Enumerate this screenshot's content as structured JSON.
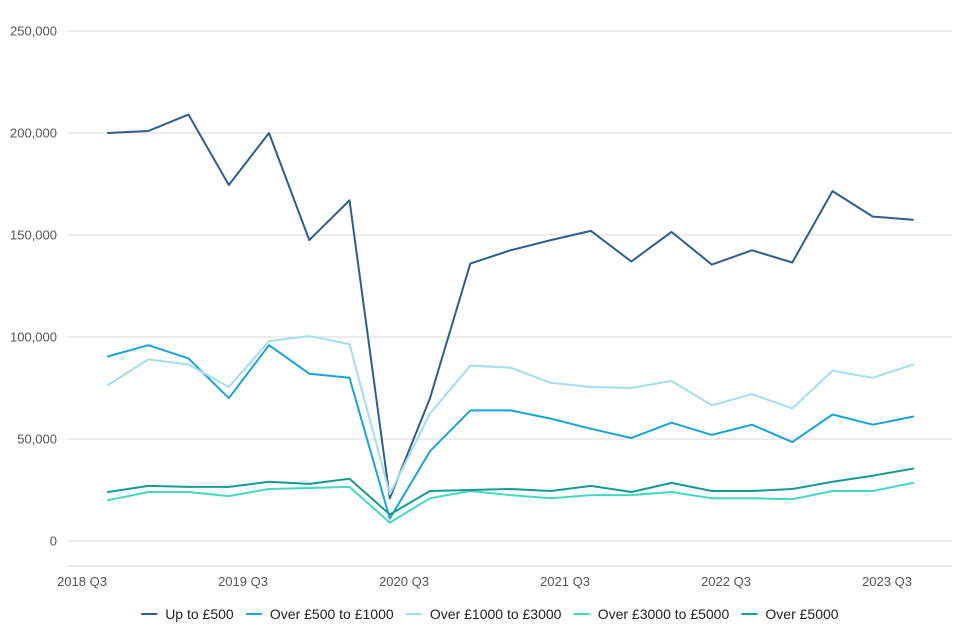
{
  "chart_data": {
    "type": "line",
    "title": "",
    "xlabel": "",
    "ylabel": "",
    "x": [
      "2018 Q3",
      "2018 Q4",
      "2019 Q1",
      "2019 Q2",
      "2019 Q3",
      "2019 Q4",
      "2020 Q1",
      "2020 Q2",
      "2020 Q3",
      "2020 Q4",
      "2021 Q1",
      "2021 Q2",
      "2021 Q3",
      "2021 Q4",
      "2022 Q1",
      "2022 Q2",
      "2022 Q3",
      "2022 Q4",
      "2023 Q1",
      "2023 Q2",
      "2023 Q3"
    ],
    "x_tick_labels": [
      "2018 Q3",
      "2019 Q3",
      "2020 Q3",
      "2021 Q3",
      "2022 Q3",
      "2023 Q3"
    ],
    "y_tick_labels": [
      "250,000",
      "200,000",
      "150,000",
      "100,000",
      "50,000",
      "0"
    ],
    "y_ticks": [
      250000,
      200000,
      150000,
      100000,
      50000,
      0
    ],
    "ylim": [
      0,
      250000
    ],
    "grid": true,
    "legend_position": "bottom",
    "series": [
      {
        "name": "Up to £500",
        "color": "#2e5e8e",
        "values": [
          200000,
          201000,
          209000,
          174500,
          200000,
          147500,
          167000,
          21000,
          70000,
          136000,
          142500,
          147500,
          152000,
          137000,
          151500,
          135500,
          142500,
          136500,
          171500,
          159000,
          157500
        ]
      },
      {
        "name": "Over £500 to £1000",
        "color": "#1aa3d8",
        "values": [
          90500,
          96000,
          89500,
          70000,
          96000,
          82000,
          80000,
          11000,
          44000,
          64000,
          64000,
          60000,
          55000,
          50500,
          58000,
          52000,
          57000,
          48500,
          62000,
          57000,
          61000
        ]
      },
      {
        "name": "Over £1000 to £3000",
        "color": "#a3ddef",
        "values": [
          76500,
          89000,
          86500,
          75500,
          98000,
          100500,
          96500,
          23000,
          62500,
          86000,
          85000,
          77500,
          75500,
          75000,
          78500,
          66500,
          72000,
          65000,
          83500,
          80000,
          86500
        ]
      },
      {
        "name": "Over £3000 to £5000",
        "color": "#44d9be",
        "values": [
          20000,
          24000,
          24000,
          22000,
          25500,
          26000,
          26500,
          9000,
          21000,
          24500,
          22500,
          21000,
          22500,
          22500,
          24000,
          21000,
          21000,
          20500,
          24500,
          24500,
          28500
        ]
      },
      {
        "name": "Over £5000",
        "color": "#159a93",
        "values": [
          24000,
          27000,
          26500,
          26500,
          29000,
          28000,
          30500,
          13000,
          24500,
          25000,
          25500,
          24500,
          27000,
          24000,
          28500,
          24500,
          24500,
          25500,
          29000,
          32000,
          35500
        ]
      }
    ]
  }
}
